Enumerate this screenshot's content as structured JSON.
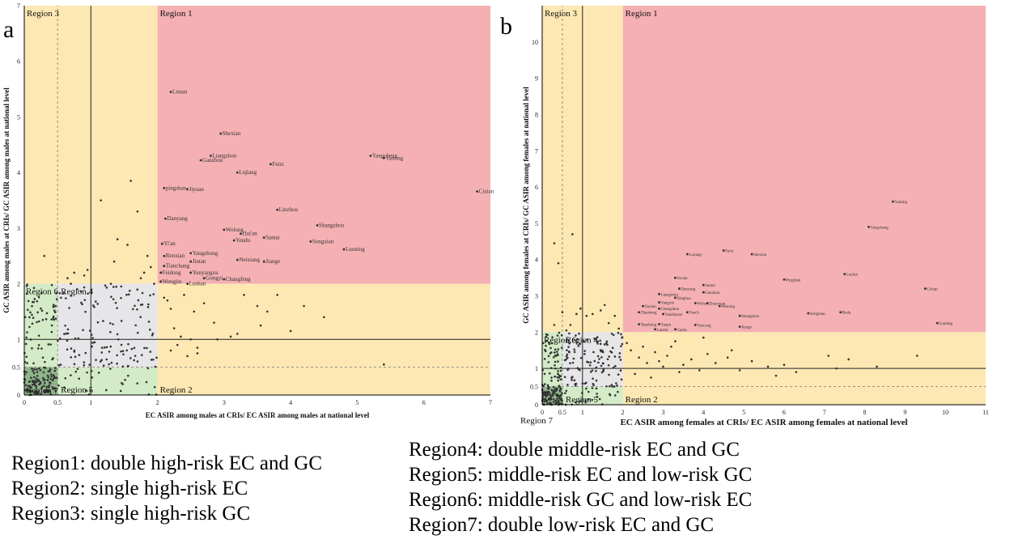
{
  "panels": [
    {
      "letter": "a",
      "xlabel": "EC ASIR among males at CRIs/ EC ASIR among males at national level",
      "ylabel": "GC ASIR among males at CRIs/ GC ASIR among males at national level",
      "xticks": [
        "0",
        "0.5",
        "1",
        "2",
        "3",
        "4",
        "5",
        "6",
        "7"
      ],
      "yticks": [
        "0",
        "0.5",
        "1",
        "2",
        "3",
        "4",
        "5",
        "6",
        "7"
      ],
      "region_labels": {
        "r1": "Region 1",
        "r2": "Region 2",
        "r3": "Region 3",
        "r4": "Region 4",
        "r5": "Region 5",
        "r6": "Region 6",
        "r7": "Region 7"
      }
    },
    {
      "letter": "b",
      "xlabel": "EC ASIR among females at CRIs/ EC ASIR among females at national level",
      "ylabel": "GC ASIR among females at CRIs/ GC ASIR among females at national level",
      "xticks": [
        "0",
        "0.5",
        "1",
        "2",
        "3",
        "4",
        "5",
        "6",
        "7",
        "8",
        "9",
        "10",
        "11"
      ],
      "yticks": [
        "0",
        "0.5",
        "1",
        "2",
        "3",
        "4",
        "5",
        "6",
        "7",
        "8",
        "9",
        "10"
      ],
      "region_labels": {
        "r1": "Region 1",
        "r2": "Region 2",
        "r3": "Region 3",
        "r4": "Region 4",
        "r5": "Region 5",
        "r6": "Region 6",
        "r7": "Region 7"
      }
    }
  ],
  "legend": {
    "left": [
      "Region1: double high-risk EC and GC",
      "Region2: single high-risk EC",
      "Region3: single high-risk GC"
    ],
    "right": [
      "Region4: double middle-risk EC and GC",
      "Region5: middle-risk EC and low-risk GC",
      "Region6: middle-risk GC and low-risk EC",
      "Region7: double low-risk EC and GC"
    ]
  },
  "colors": {
    "region1": "#f4b0b3",
    "region23": "#fde8b3",
    "region4": "#e6e5e8",
    "region56": "#d3ebc7",
    "region7": "#8fb58a",
    "point": "#333333"
  },
  "chart_data": [
    {
      "type": "scatter",
      "xlabel": "EC ASIR among males at CRIs/ EC ASIR among males at national level",
      "ylabel": "GC ASIR among males at CRIs/ GC ASIR among males at national level",
      "xlim": [
        0,
        7
      ],
      "ylim": [
        0,
        7
      ],
      "reference_lines": {
        "solid_x": 1,
        "solid_y": 1,
        "dashed_x": 0.5,
        "dashed_y": 0.5
      },
      "region_bounds": {
        "low": 0.5,
        "high": 2
      },
      "labeled_points": [
        {
          "name": "Lintan",
          "x": 2.2,
          "y": 5.45
        },
        {
          "name": "Shexian",
          "x": 2.95,
          "y": 4.7
        },
        {
          "name": "Liangzhou",
          "x": 2.8,
          "y": 4.3
        },
        {
          "name": "Ganzhou",
          "x": 2.65,
          "y": 4.22
        },
        {
          "name": "Lujiang",
          "x": 3.2,
          "y": 4.0
        },
        {
          "name": "Feixi",
          "x": 3.7,
          "y": 4.15
        },
        {
          "name": "Yangcheng",
          "x": 5.2,
          "y": 4.3
        },
        {
          "name": "Yanting",
          "x": 5.4,
          "y": 4.26
        },
        {
          "name": "Cixian",
          "x": 6.8,
          "y": 3.66
        },
        {
          "name": "pingshan",
          "x": 2.1,
          "y": 3.72
        },
        {
          "name": "Jiyuan",
          "x": 2.45,
          "y": 3.7
        },
        {
          "name": "Linzhou",
          "x": 3.8,
          "y": 3.33
        },
        {
          "name": "Danyang",
          "x": 2.12,
          "y": 3.17
        },
        {
          "name": "Shangzhou",
          "x": 4.4,
          "y": 3.05
        },
        {
          "name": "Wolong",
          "x": 3.0,
          "y": 2.97
        },
        {
          "name": "Hui'an",
          "x": 3.25,
          "y": 2.9
        },
        {
          "name": "Yendu",
          "x": 3.15,
          "y": 2.78
        },
        {
          "name": "Santai",
          "x": 3.6,
          "y": 2.83
        },
        {
          "name": "Songxian",
          "x": 4.3,
          "y": 2.76
        },
        {
          "name": "Luoning",
          "x": 4.8,
          "y": 2.62
        },
        {
          "name": "Yi'an",
          "x": 2.07,
          "y": 2.72
        },
        {
          "name": "Renxian",
          "x": 2.1,
          "y": 2.5
        },
        {
          "name": "Yangzhong",
          "x": 2.5,
          "y": 2.55
        },
        {
          "name": "Jintan",
          "x": 2.5,
          "y": 2.4
        },
        {
          "name": "Neixiang",
          "x": 3.2,
          "y": 2.43
        },
        {
          "name": "Jiange",
          "x": 3.6,
          "y": 2.4
        },
        {
          "name": "Tianchang",
          "x": 2.1,
          "y": 2.32
        },
        {
          "name": "Feidong",
          "x": 2.05,
          "y": 2.2
        },
        {
          "name": "Yunyangxu",
          "x": 2.5,
          "y": 2.2
        },
        {
          "name": "Gongyi",
          "x": 2.7,
          "y": 2.1
        },
        {
          "name": "Changfeng",
          "x": 3.0,
          "y": 2.08
        },
        {
          "name": "Wengjin",
          "x": 2.05,
          "y": 2.04
        },
        {
          "name": "Lushan",
          "x": 2.45,
          "y": 2.0
        }
      ],
      "points": [
        [
          0.3,
          2.5
        ],
        [
          0.65,
          2.1
        ],
        [
          0.7,
          2.0
        ],
        [
          0.75,
          2.2
        ],
        [
          0.9,
          2.15
        ],
        [
          0.95,
          2.25
        ],
        [
          1.15,
          3.5
        ],
        [
          1.3,
          2.0
        ],
        [
          1.35,
          2.4
        ],
        [
          1.4,
          2.8
        ],
        [
          1.55,
          2.7
        ],
        [
          1.6,
          3.85
        ],
        [
          1.7,
          3.3
        ],
        [
          1.75,
          2.1
        ],
        [
          1.8,
          2.2
        ],
        [
          1.85,
          2.5
        ],
        [
          1.9,
          2.3
        ],
        [
          1.95,
          2.0
        ],
        [
          2.1,
          1.75
        ],
        [
          2.15,
          1.7
        ],
        [
          2.2,
          1.55
        ],
        [
          2.25,
          1.2
        ],
        [
          2.3,
          0.9
        ],
        [
          2.35,
          1.05
        ],
        [
          2.4,
          1.8
        ],
        [
          2.5,
          1.0
        ],
        [
          2.55,
          1.5
        ],
        [
          2.6,
          0.85
        ],
        [
          2.7,
          1.65
        ],
        [
          2.85,
          1.3
        ],
        [
          2.9,
          1.0
        ],
        [
          3.1,
          1.05
        ],
        [
          3.2,
          1.1
        ],
        [
          3.3,
          1.8
        ],
        [
          3.5,
          1.6
        ],
        [
          3.55,
          1.25
        ],
        [
          3.65,
          1.5
        ],
        [
          3.8,
          1.8
        ],
        [
          4.0,
          1.15
        ],
        [
          4.2,
          1.6
        ],
        [
          4.5,
          1.4
        ],
        [
          5.4,
          0.55
        ],
        [
          2.2,
          0.8
        ],
        [
          2.45,
          0.7
        ],
        [
          2.6,
          0.75
        ]
      ]
    },
    {
      "type": "scatter",
      "xlabel": "EC ASIR among females at CRIs/ EC ASIR among females at national level",
      "ylabel": "GC ASIR among females at CRIs/ GC ASIR among females at national level",
      "xlim": [
        0,
        11
      ],
      "ylim": [
        0,
        11
      ],
      "reference_lines": {
        "solid_x": 1,
        "solid_y": 1,
        "dashed_x": 0.5,
        "dashed_y": 0.5
      },
      "region_bounds": {
        "low": 0.5,
        "high": 2
      },
      "labeled_points": [
        {
          "name": "Yanting",
          "x": 8.7,
          "y": 5.6
        },
        {
          "name": "Yangcheng",
          "x": 8.1,
          "y": 4.9
        },
        {
          "name": "Lujiang",
          "x": 3.6,
          "y": 4.15
        },
        {
          "name": "Feixi",
          "x": 4.5,
          "y": 4.25
        },
        {
          "name": "Shexian",
          "x": 5.2,
          "y": 4.15
        },
        {
          "name": "Luoluo",
          "x": 7.5,
          "y": 3.6
        },
        {
          "name": "Pingshan",
          "x": 6.0,
          "y": 3.45
        },
        {
          "name": "Cixian",
          "x": 9.5,
          "y": 3.2
        },
        {
          "name": "Jiyuan",
          "x": 3.3,
          "y": 3.5
        },
        {
          "name": "Santai",
          "x": 4.0,
          "y": 3.3
        },
        {
          "name": "Danyang",
          "x": 3.4,
          "y": 3.2
        },
        {
          "name": "Ganzhou",
          "x": 4.0,
          "y": 3.1
        },
        {
          "name": "Liangzhou",
          "x": 2.9,
          "y": 3.05
        },
        {
          "name": "Xinghua",
          "x": 3.3,
          "y": 2.95
        },
        {
          "name": "Yangxin",
          "x": 2.9,
          "y": 2.82
        },
        {
          "name": "Wolun",
          "x": 3.8,
          "y": 2.8
        },
        {
          "name": "Zhaoyuan",
          "x": 4.1,
          "y": 2.8
        },
        {
          "name": "Jiaxian",
          "x": 2.5,
          "y": 2.72
        },
        {
          "name": "Changzhou",
          "x": 2.9,
          "y": 2.65
        },
        {
          "name": "Weining",
          "x": 4.4,
          "y": 2.72
        },
        {
          "name": "Zhaobeng",
          "x": 2.4,
          "y": 2.55
        },
        {
          "name": "Yanzhaoze",
          "x": 3.0,
          "y": 2.5
        },
        {
          "name": "Yanch",
          "x": 3.6,
          "y": 2.55
        },
        {
          "name": "Shangzhou",
          "x": 4.9,
          "y": 2.45
        },
        {
          "name": "Songxian",
          "x": 6.6,
          "y": 2.52
        },
        {
          "name": "Ruda",
          "x": 7.4,
          "y": 2.55
        },
        {
          "name": "Luoning",
          "x": 9.8,
          "y": 2.25
        },
        {
          "name": "Tanzhong",
          "x": 2.4,
          "y": 2.22
        },
        {
          "name": "Yanpu",
          "x": 2.9,
          "y": 2.22
        },
        {
          "name": "Yanceng",
          "x": 3.8,
          "y": 2.2
        },
        {
          "name": "Jiange",
          "x": 4.9,
          "y": 2.15
        },
        {
          "name": "Linshu",
          "x": 2.8,
          "y": 2.08
        },
        {
          "name": "Gaolu",
          "x": 3.3,
          "y": 2.08
        }
      ],
      "points": [
        [
          0.3,
          4.45
        ],
        [
          0.4,
          3.9
        ],
        [
          0.75,
          4.7
        ],
        [
          0.3,
          2.2
        ],
        [
          0.5,
          2.55
        ],
        [
          0.6,
          2.05
        ],
        [
          0.85,
          2.5
        ],
        [
          0.95,
          2.65
        ],
        [
          1.1,
          2.45
        ],
        [
          1.25,
          2.5
        ],
        [
          1.45,
          2.6
        ],
        [
          1.55,
          2.75
        ],
        [
          1.65,
          2.25
        ],
        [
          1.8,
          2.45
        ],
        [
          1.9,
          2.1
        ],
        [
          0.7,
          2.2
        ],
        [
          2.1,
          1.7
        ],
        [
          2.2,
          1.5
        ],
        [
          2.4,
          1.3
        ],
        [
          2.5,
          1.6
        ],
        [
          2.6,
          1.15
        ],
        [
          2.8,
          1.45
        ],
        [
          2.9,
          1.2
        ],
        [
          3.0,
          1.05
        ],
        [
          3.1,
          1.35
        ],
        [
          3.2,
          1.6
        ],
        [
          3.3,
          1.75
        ],
        [
          3.5,
          1.1
        ],
        [
          3.7,
          1.25
        ],
        [
          3.9,
          0.95
        ],
        [
          4.1,
          1.4
        ],
        [
          4.3,
          1.15
        ],
        [
          4.6,
          1.3
        ],
        [
          4.9,
          0.95
        ],
        [
          5.2,
          1.2
        ],
        [
          5.6,
          1.05
        ],
        [
          6.0,
          1.1
        ],
        [
          6.3,
          0.9
        ],
        [
          7.1,
          1.35
        ],
        [
          7.3,
          1.0
        ],
        [
          7.6,
          1.25
        ],
        [
          8.3,
          1.05
        ],
        [
          9.3,
          1.35
        ],
        [
          2.3,
          0.85
        ],
        [
          2.7,
          0.75
        ],
        [
          3.4,
          0.9
        ],
        [
          4.0,
          1.85
        ],
        [
          4.7,
          1.5
        ],
        [
          5.8,
          0.8
        ]
      ]
    }
  ]
}
